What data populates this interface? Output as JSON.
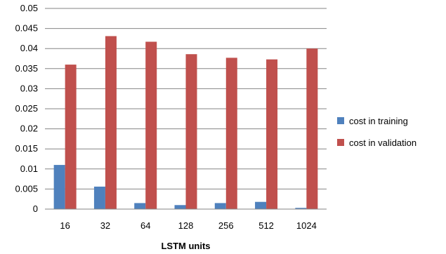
{
  "chart_data": {
    "type": "bar",
    "title": "",
    "xlabel": "LSTM units",
    "ylabel": "",
    "categories": [
      "16",
      "32",
      "64",
      "128",
      "256",
      "512",
      "1024"
    ],
    "series": [
      {
        "name": "cost in training",
        "color": "#4f81bd",
        "values": [
          0.011,
          0.0056,
          0.0015,
          0.001,
          0.0015,
          0.0018,
          0.0003
        ]
      },
      {
        "name": "cost in validation",
        "color": "#c0504d",
        "values": [
          0.036,
          0.0431,
          0.0417,
          0.0386,
          0.0377,
          0.0373,
          0.04
        ]
      }
    ],
    "yticks": [
      "0",
      "0.005",
      "0.01",
      "0.015",
      "0.02",
      "0.025",
      "0.03",
      "0.035",
      "0.04",
      "0.045",
      "0.05"
    ],
    "ylim": [
      0,
      0.05
    ],
    "grid": true,
    "legend_position": "right"
  }
}
